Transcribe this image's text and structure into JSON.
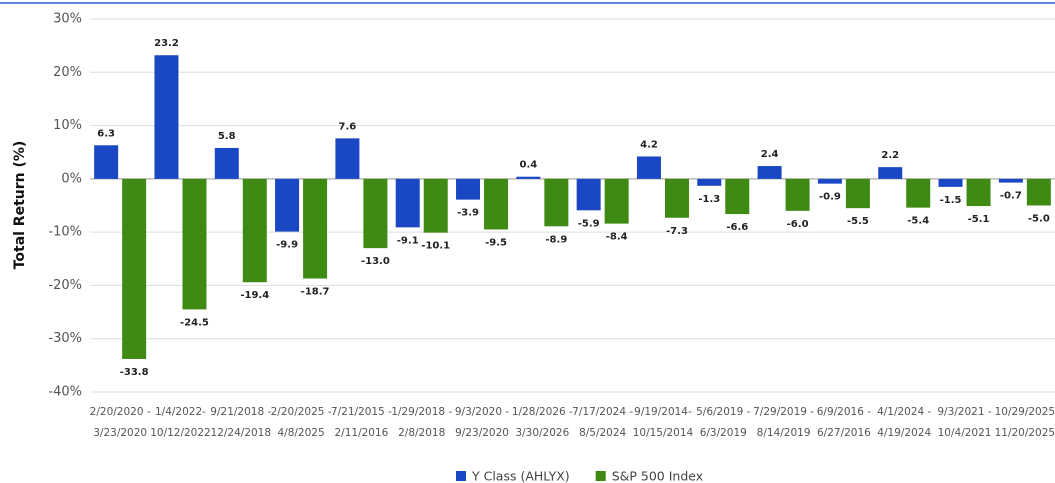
{
  "chart_data": {
    "type": "bar",
    "y_label": "Total Return (%)",
    "categories": [
      [
        "2/20/2020 -",
        "3/23/2020"
      ],
      [
        "1/4/2022-",
        "10/12/2022"
      ],
      [
        "9/21/2018 -",
        "12/24/2018"
      ],
      [
        "2/20/2025 -",
        "4/8/2025"
      ],
      [
        "7/21/2015 -",
        "2/11/2016"
      ],
      [
        "1/29/2018 -",
        "2/8/2018"
      ],
      [
        "9/3/2020 -",
        "9/23/2020"
      ],
      [
        "1/28/2026 -",
        "3/30/2026"
      ],
      [
        "7/17/2024 -",
        "8/5/2024"
      ],
      [
        "9/19/2014-",
        "10/15/2014"
      ],
      [
        "5/6/2019 -",
        "6/3/2019"
      ],
      [
        "7/29/2019 -",
        "8/14/2019"
      ],
      [
        "6/9/2016 -",
        "6/27/2016"
      ],
      [
        "4/1/2024 -",
        "4/19/2024"
      ],
      [
        "9/3/2021 -",
        "10/4/2021"
      ],
      [
        "10/29/2025",
        "11/20/2025"
      ]
    ],
    "series": [
      {
        "name": "Y Class (AHLYX)",
        "color": "#1a48c4",
        "values": [
          6.3,
          23.2,
          5.8,
          -9.9,
          7.6,
          -9.1,
          -3.9,
          0.4,
          -5.9,
          4.2,
          -1.3,
          2.4,
          -0.9,
          2.2,
          -1.5,
          -0.7
        ],
        "value_labels": [
          "6.3",
          "23.2",
          "5.8",
          "-9.9",
          "7.6",
          "-9.1",
          "-3.9",
          "0.4",
          "-5.9",
          "4.2",
          "-1.3",
          "2.4",
          "-0.9",
          "2.2",
          "-1.5",
          "-0.7"
        ]
      },
      {
        "name": "S&P 500 Index",
        "color": "#3f8a12",
        "values": [
          -33.8,
          -24.5,
          -19.4,
          -18.7,
          -13.0,
          -10.1,
          -9.5,
          -8.9,
          -8.4,
          -7.3,
          -6.6,
          -6.0,
          -5.5,
          -5.4,
          -5.1,
          -5.0
        ],
        "value_labels": [
          "-33.8",
          "-24.5",
          "-19.4",
          "-18.7",
          "-13.0",
          "-10.1",
          "-9.5",
          "-8.9",
          "-8.4",
          "-7.3",
          "-6.6",
          "-6.0",
          "-5.5",
          "-5.4",
          "-5.1",
          "-5.0"
        ]
      }
    ],
    "ylim": [
      -40,
      30
    ],
    "yticks": [
      {
        "value": -40,
        "label": "-40%"
      },
      {
        "value": -30,
        "label": "-30%"
      },
      {
        "value": -20,
        "label": "-20%"
      },
      {
        "value": -10,
        "label": "-10%"
      },
      {
        "value": 0,
        "label": "0%"
      },
      {
        "value": 10,
        "label": "10%"
      },
      {
        "value": 20,
        "label": "20%"
      },
      {
        "value": 30,
        "label": "30%"
      }
    ],
    "grid": true,
    "legend": "bottom"
  }
}
